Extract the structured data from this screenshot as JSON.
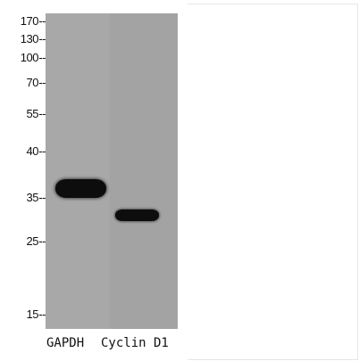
{
  "blot": {
    "markers": [
      {
        "label": "170",
        "kda": 170
      },
      {
        "label": "130",
        "kda": 130
      },
      {
        "label": "100",
        "kda": 100
      },
      {
        "label": "70",
        "kda": 70
      },
      {
        "label": "55",
        "kda": 55
      },
      {
        "label": "40",
        "kda": 40
      },
      {
        "label": "35",
        "kda": 35
      },
      {
        "label": "25",
        "kda": 25
      },
      {
        "label": "15",
        "kda": 15
      }
    ],
    "marker_dash": "--",
    "lanes": [
      {
        "label": "GAPDH"
      },
      {
        "label": "Cyclin D1"
      }
    ],
    "colors": {
      "membrane": "#a6a6a6",
      "band": "#0d0d0d",
      "background": "#ffffff"
    }
  }
}
